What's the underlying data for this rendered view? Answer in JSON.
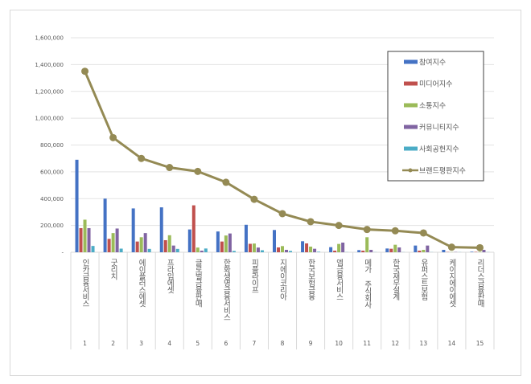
{
  "chart_data": {
    "type": "bar+line",
    "categories": [
      "인카금융서비스",
      "굿리치",
      "에이플러스에셋",
      "프라임에셋",
      "글로벌금융판매",
      "한화생명금융서비스",
      "피플라이프",
      "지에이코리아",
      "한국보험금융",
      "엠금융서비스",
      "메가 주식회사",
      "한국재무설계",
      "유퍼스트보험",
      "케이지에이에셋",
      "리더스금융판매"
    ],
    "ranks": [
      "1",
      "2",
      "3",
      "4",
      "5",
      "6",
      "7",
      "8",
      "9",
      "10",
      "11",
      "12",
      "13",
      "14",
      "15"
    ],
    "ylim": [
      0,
      1600000
    ],
    "yticks": [
      "-",
      "200,000",
      "400,000",
      "600,000",
      "800,000",
      "1,000,000",
      "1,200,000",
      "1,400,000",
      "1,600,000"
    ],
    "grid": true,
    "legend_position": "top-right",
    "series": [
      {
        "name": "참여지수",
        "kind": "bar",
        "color": "#4472c4",
        "values": [
          690000,
          400000,
          327000,
          335000,
          170000,
          155000,
          205000,
          166000,
          82000,
          38000,
          16000,
          28000,
          50000,
          18000,
          4000
        ]
      },
      {
        "name": "미디어지수",
        "kind": "bar",
        "color": "#c0504d",
        "values": [
          180000,
          100000,
          80000,
          90000,
          350000,
          80000,
          63000,
          36000,
          66000,
          12000,
          12000,
          26000,
          12000,
          2000,
          3000
        ]
      },
      {
        "name": "소통지수",
        "kind": "bar",
        "color": "#9bbb59",
        "values": [
          243000,
          143000,
          112000,
          127000,
          35000,
          125000,
          65000,
          46000,
          42000,
          62000,
          112000,
          56000,
          18000,
          2000,
          3000
        ]
      },
      {
        "name": "커뮤니티지수",
        "kind": "bar",
        "color": "#8064a2",
        "values": [
          180000,
          177000,
          143000,
          50000,
          12000,
          140000,
          35000,
          18000,
          26000,
          72000,
          18000,
          36000,
          50000,
          2000,
          18000
        ]
      },
      {
        "name": "사회공헌지수",
        "kind": "bar",
        "color": "#4bacc6",
        "values": [
          47000,
          27000,
          25000,
          25000,
          28000,
          10000,
          15000,
          10000,
          4000,
          1000,
          1000,
          1000,
          1000,
          1000,
          1000
        ]
      },
      {
        "name": "브랜드평판지수",
        "kind": "line",
        "color": "#948a54",
        "values": [
          1350000,
          855000,
          700000,
          632000,
          603000,
          522000,
          395000,
          288000,
          228000,
          200000,
          170000,
          160000,
          144000,
          38000,
          34000
        ]
      }
    ]
  }
}
